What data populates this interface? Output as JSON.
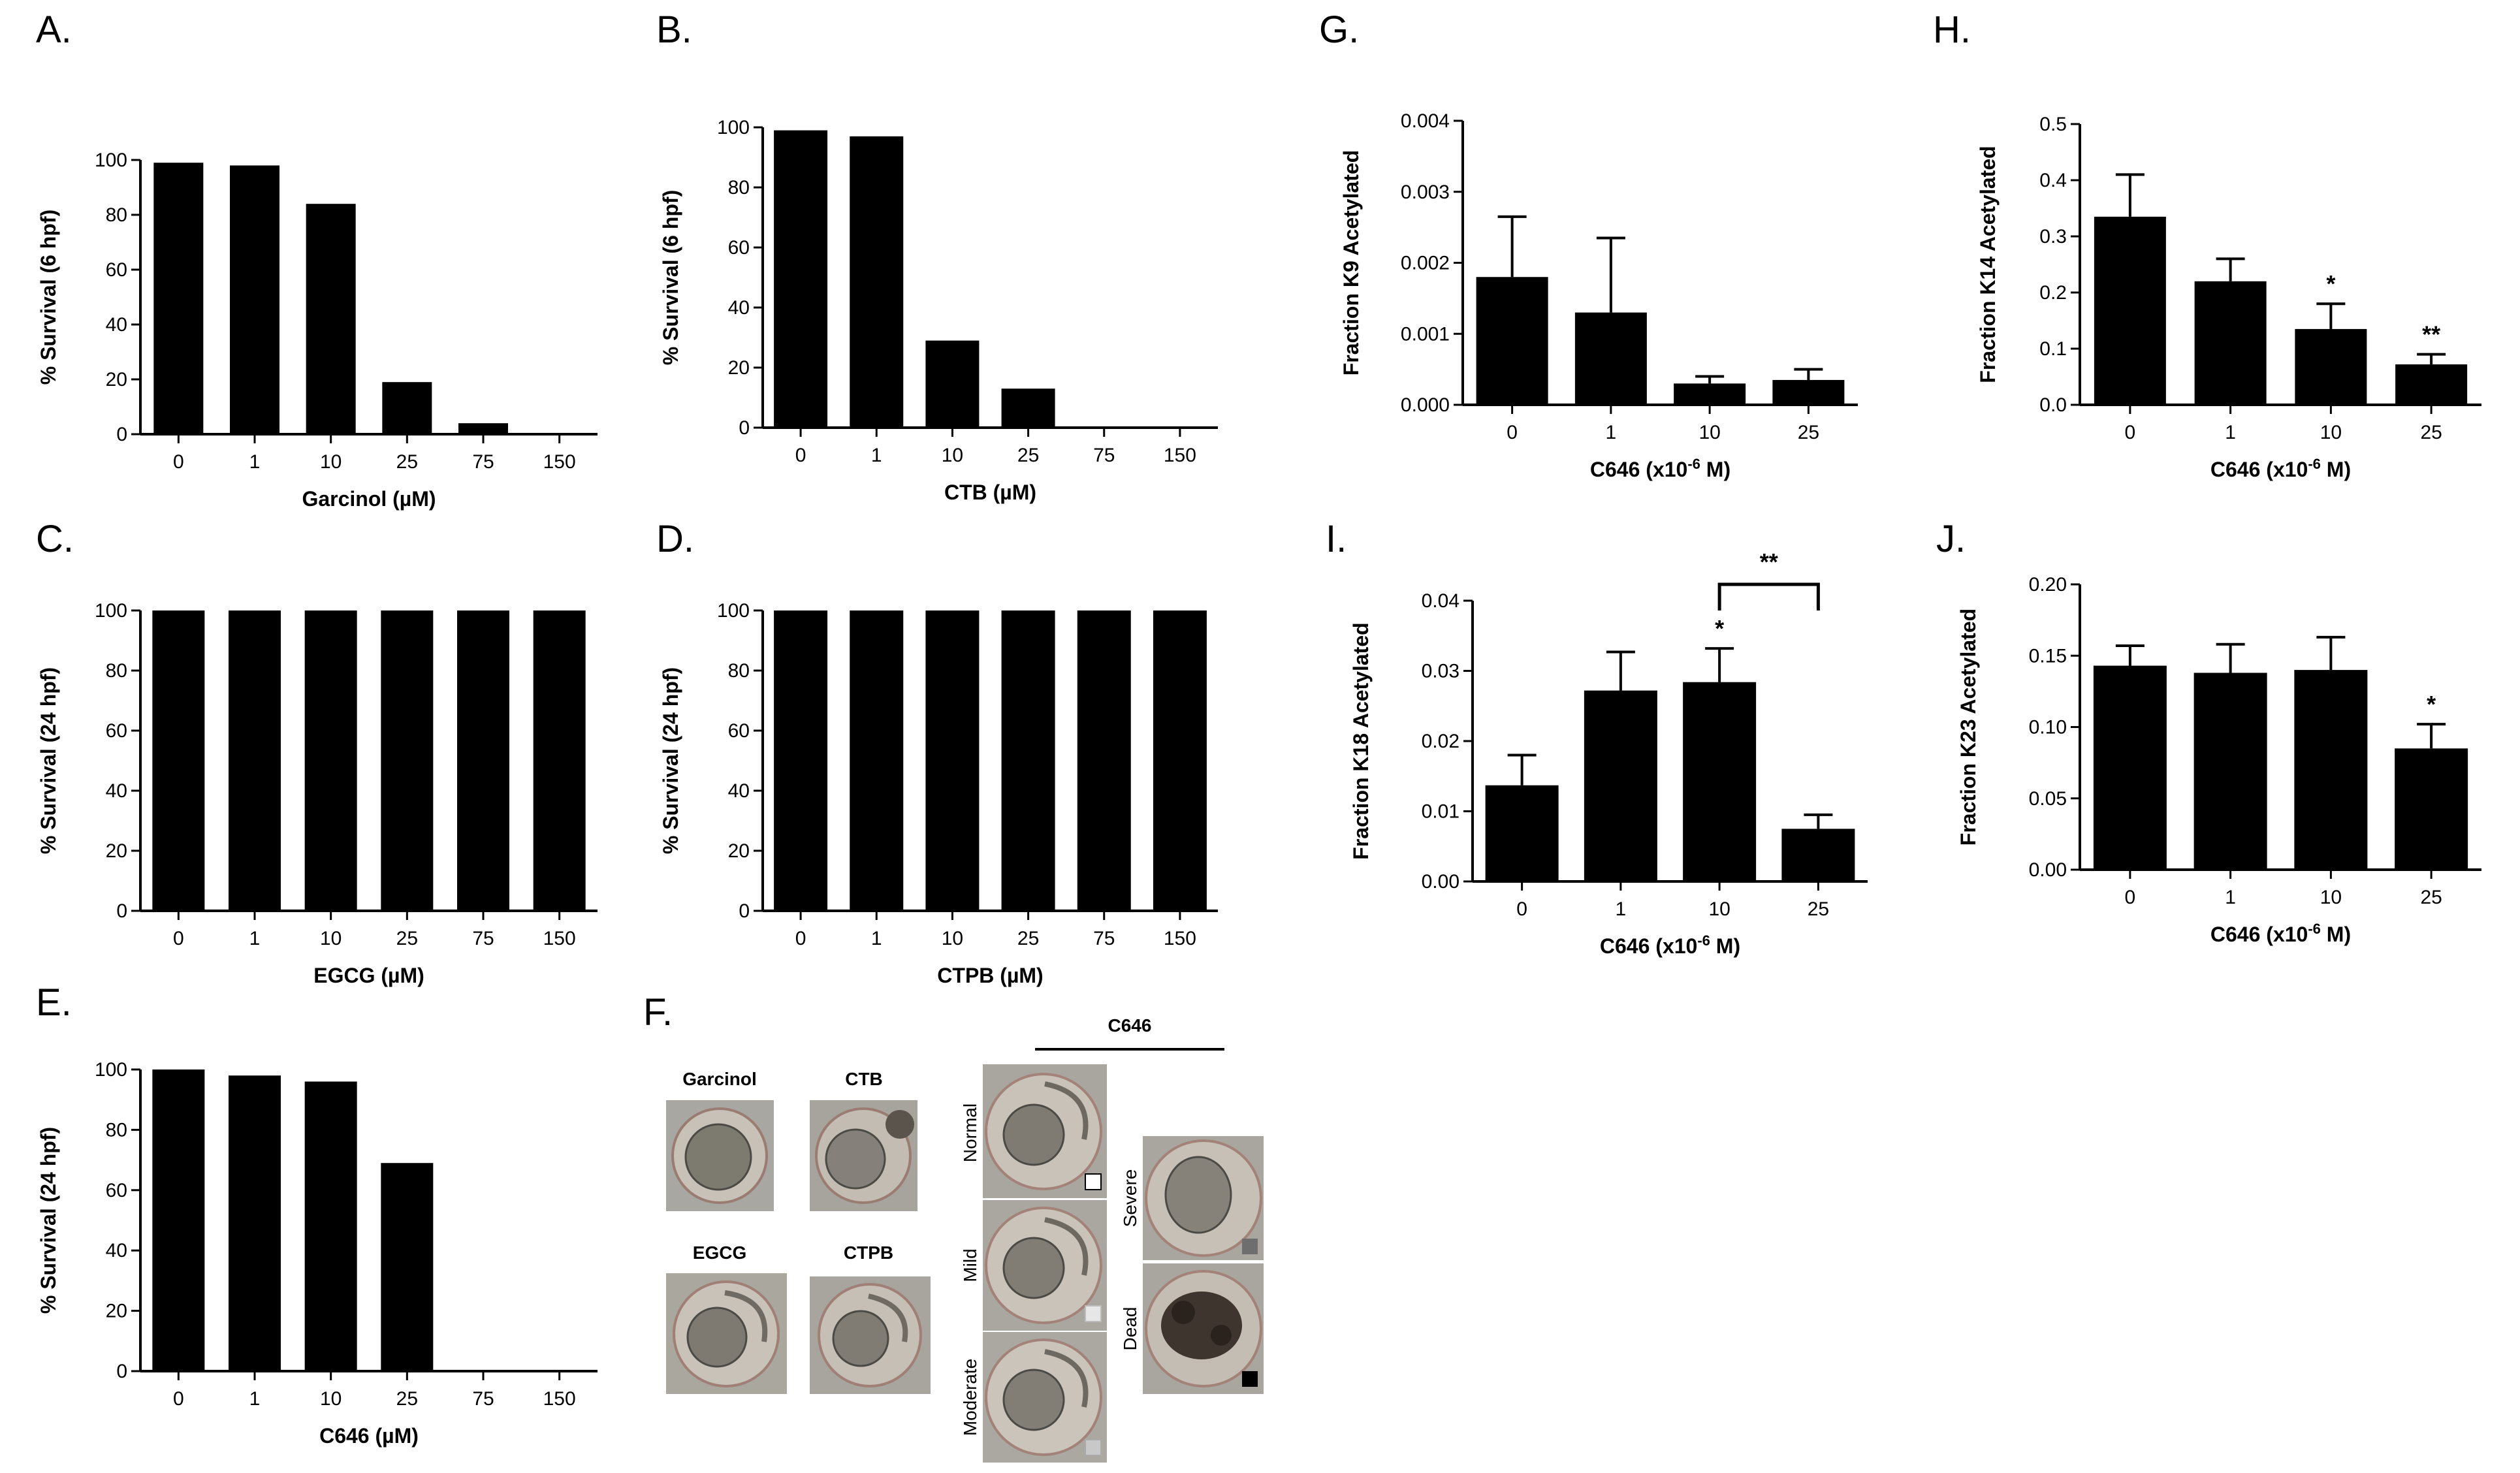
{
  "chart_data": [
    {
      "id": "A",
      "type": "bar",
      "panel_label": "A.",
      "categories": [
        "0",
        "1",
        "10",
        "25",
        "75",
        "150"
      ],
      "values": [
        99,
        98,
        84,
        19,
        4,
        0
      ],
      "xlabel": "Garcinol (µM)",
      "ylabel": "% Survival (6 hpf)",
      "ylim": [
        0,
        100
      ],
      "yticks": [
        "0",
        "20",
        "40",
        "60",
        "80",
        "100"
      ]
    },
    {
      "id": "B",
      "type": "bar",
      "panel_label": "B.",
      "categories": [
        "0",
        "1",
        "10",
        "25",
        "75",
        "150"
      ],
      "values": [
        99,
        97,
        29,
        13,
        0,
        0
      ],
      "xlabel": "CTB (µM)",
      "ylabel": "% Survival (6 hpf)",
      "ylim": [
        0,
        100
      ],
      "yticks": [
        "0",
        "20",
        "40",
        "60",
        "80",
        "100"
      ]
    },
    {
      "id": "C",
      "type": "bar",
      "panel_label": "C.",
      "categories": [
        "0",
        "1",
        "10",
        "25",
        "75",
        "150"
      ],
      "values": [
        100,
        100,
        100,
        100,
        100,
        100
      ],
      "xlabel": "EGCG (µM)",
      "ylabel": "% Survival (24 hpf)",
      "ylim": [
        0,
        100
      ],
      "yticks": [
        "0",
        "20",
        "40",
        "60",
        "80",
        "100"
      ]
    },
    {
      "id": "D",
      "type": "bar",
      "panel_label": "D.",
      "categories": [
        "0",
        "1",
        "10",
        "25",
        "75",
        "150"
      ],
      "values": [
        100,
        100,
        100,
        100,
        100,
        100
      ],
      "xlabel": "CTPB (µM)",
      "ylabel": "% Survival (24 hpf)",
      "ylim": [
        0,
        100
      ],
      "yticks": [
        "0",
        "20",
        "40",
        "60",
        "80",
        "100"
      ]
    },
    {
      "id": "E",
      "type": "bar",
      "panel_label": "E.",
      "categories": [
        "0",
        "1",
        "10",
        "25",
        "75",
        "150"
      ],
      "values": [
        100,
        98,
        96,
        69,
        0,
        0
      ],
      "xlabel": "C646 (µM)",
      "ylabel": "% Survival (24 hpf)",
      "ylim": [
        0,
        100
      ],
      "yticks": [
        "0",
        "20",
        "40",
        "60",
        "80",
        "100"
      ]
    },
    {
      "id": "G",
      "type": "bar",
      "panel_label": "G.",
      "categories": [
        "0",
        "1",
        "10",
        "25"
      ],
      "values": [
        0.0018,
        0.0013,
        0.0003,
        0.00035
      ],
      "errors": [
        0.00085,
        0.00105,
        0.0001,
        0.00015
      ],
      "xlabel": "C646 (x10",
      "xlabel_sup": "-6",
      "xlabel_tail": " M)",
      "ylabel": "Fraction K9 Acetylated",
      "ylim": [
        0,
        0.004
      ],
      "yticks": [
        "0.000",
        "0.001",
        "0.002",
        "0.003",
        "0.004"
      ],
      "annotations": []
    },
    {
      "id": "H",
      "type": "bar",
      "panel_label": "H.",
      "categories": [
        "0",
        "1",
        "10",
        "25"
      ],
      "values": [
        0.335,
        0.22,
        0.135,
        0.072
      ],
      "errors": [
        0.075,
        0.04,
        0.045,
        0.018
      ],
      "xlabel": "C646 (x10",
      "xlabel_sup": "-6",
      "xlabel_tail": " M)",
      "ylabel": "Fraction K14 Acetylated",
      "ylim": [
        0,
        0.5
      ],
      "yticks": [
        "0.0",
        "0.1",
        "0.2",
        "0.3",
        "0.4",
        "0.5"
      ],
      "annotations": [
        {
          "bar": 2,
          "text": "*"
        },
        {
          "bar": 3,
          "text": "**"
        }
      ]
    },
    {
      "id": "I",
      "type": "bar",
      "panel_label": "I.",
      "categories": [
        "0",
        "1",
        "10",
        "25"
      ],
      "values": [
        0.0137,
        0.0272,
        0.0284,
        0.0075
      ],
      "errors": [
        0.0043,
        0.0055,
        0.0048,
        0.002
      ],
      "xlabel": "C646 (x10",
      "xlabel_sup": "-6",
      "xlabel_tail": " M)",
      "ylabel": "Fraction K18 Acetylated",
      "ylim": [
        0,
        0.04
      ],
      "yticks": [
        "0.00",
        "0.01",
        "0.02",
        "0.03",
        "0.04"
      ],
      "annotations": [
        {
          "bar": 2,
          "text": "*"
        }
      ],
      "bracket": {
        "from": 2,
        "to": 3,
        "text": "**"
      }
    },
    {
      "id": "J",
      "type": "bar",
      "panel_label": "J.",
      "categories": [
        "0",
        "1",
        "10",
        "25"
      ],
      "values": [
        0.143,
        0.138,
        0.14,
        0.085
      ],
      "errors": [
        0.014,
        0.02,
        0.023,
        0.017
      ],
      "xlabel": "C646 (x10",
      "xlabel_sup": "-6",
      "xlabel_tail": " M)",
      "ylabel": "Fraction K23 Acetylated",
      "ylim": [
        0,
        0.2
      ],
      "yticks": [
        "0.00",
        "0.05",
        "0.10",
        "0.15",
        "0.20"
      ],
      "annotations": [
        {
          "bar": 3,
          "text": "*"
        }
      ]
    }
  ],
  "panel_f": {
    "panel_label": "F.",
    "treatments": [
      "Garcinol",
      "CTB",
      "EGCG",
      "CTPB"
    ],
    "group_title": "C646",
    "phenotypes": [
      {
        "name": "Normal",
        "swatch": "#ffffff"
      },
      {
        "name": "Mild",
        "swatch": "#e6e6e6"
      },
      {
        "name": "Moderate",
        "swatch": "#c8c8c8"
      },
      {
        "name": "Severe",
        "swatch": "#6e6e6e"
      },
      {
        "name": "Dead",
        "swatch": "#000000"
      }
    ]
  }
}
